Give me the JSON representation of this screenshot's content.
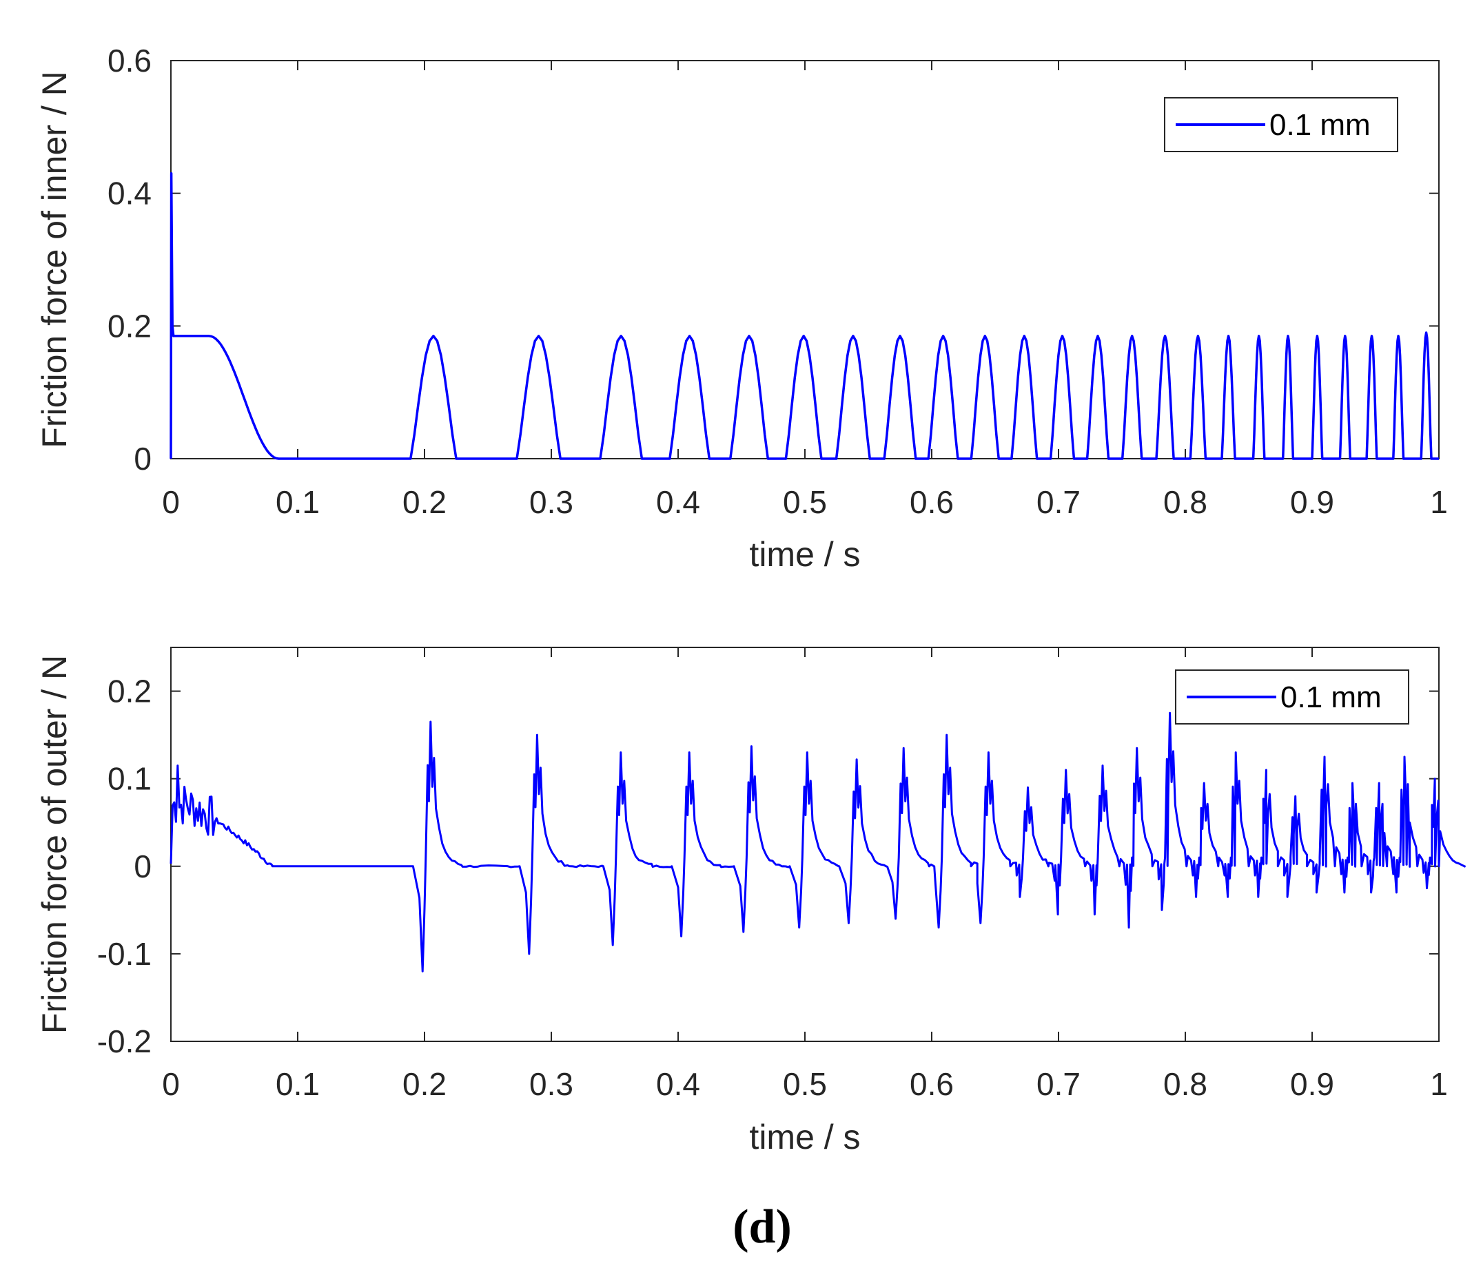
{
  "chart_data": [
    {
      "type": "line",
      "xlabel": "time / s",
      "ylabel": "Friction force of inner / N",
      "xlim": [
        0,
        1
      ],
      "ylim": [
        0,
        0.6
      ],
      "xticks": [
        0,
        0.1,
        0.2,
        0.3,
        0.4,
        0.5,
        0.6,
        0.7,
        0.8,
        0.9,
        1
      ],
      "xtick_labels": [
        "0",
        "0.1",
        "0.2",
        "0.3",
        "0.4",
        "0.5",
        "0.6",
        "0.7",
        "0.8",
        "0.9",
        "1"
      ],
      "yticks": [
        0,
        0.2,
        0.4,
        0.6
      ],
      "ytick_labels": [
        "0",
        "0.2",
        "0.4",
        "0.6"
      ],
      "legend": "top-right",
      "color": "#0000ff",
      "series": [
        {
          "name": "0.1 mm",
          "initial_spike": 0.43,
          "plateau": {
            "start": 0,
            "end": 0.085,
            "value": 0.185
          },
          "pulses": [
            {
              "t": 0.207,
              "peak": 0.185
            },
            {
              "t": 0.29,
              "peak": 0.185
            },
            {
              "t": 0.355,
              "peak": 0.185
            },
            {
              "t": 0.409,
              "peak": 0.185
            },
            {
              "t": 0.456,
              "peak": 0.185
            },
            {
              "t": 0.499,
              "peak": 0.185
            },
            {
              "t": 0.538,
              "peak": 0.185
            },
            {
              "t": 0.575,
              "peak": 0.185
            },
            {
              "t": 0.609,
              "peak": 0.185
            },
            {
              "t": 0.642,
              "peak": 0.185
            },
            {
              "t": 0.673,
              "peak": 0.185
            },
            {
              "t": 0.703,
              "peak": 0.185
            },
            {
              "t": 0.731,
              "peak": 0.185
            },
            {
              "t": 0.758,
              "peak": 0.185
            },
            {
              "t": 0.784,
              "peak": 0.185
            },
            {
              "t": 0.81,
              "peak": 0.185
            },
            {
              "t": 0.834,
              "peak": 0.185
            },
            {
              "t": 0.858,
              "peak": 0.185
            },
            {
              "t": 0.881,
              "peak": 0.185
            },
            {
              "t": 0.904,
              "peak": 0.185
            },
            {
              "t": 0.926,
              "peak": 0.185
            },
            {
              "t": 0.947,
              "peak": 0.185
            },
            {
              "t": 0.968,
              "peak": 0.185
            },
            {
              "t": 0.99,
              "peak": 0.19
            }
          ]
        }
      ]
    },
    {
      "type": "line",
      "xlabel": "time / s",
      "ylabel": "Friction force of outer / N",
      "xlim": [
        0,
        1
      ],
      "ylim": [
        -0.2,
        0.25
      ],
      "xticks": [
        0,
        0.1,
        0.2,
        0.3,
        0.4,
        0.5,
        0.6,
        0.7,
        0.8,
        0.9,
        1
      ],
      "xtick_labels": [
        "0",
        "0.1",
        "0.2",
        "0.3",
        "0.4",
        "0.5",
        "0.6",
        "0.7",
        "0.8",
        "0.9",
        "1"
      ],
      "yticks": [
        -0.2,
        -0.1,
        0,
        0.1,
        0.2
      ],
      "ytick_labels": [
        "-0.2",
        "-0.1",
        "0",
        "0.1",
        "0.2"
      ],
      "legend": "top-right",
      "color": "#0000ff",
      "series": [
        {
          "name": "0.1 mm",
          "initial_hump": {
            "start": 0,
            "end": 0.08,
            "peak": 0.115
          },
          "events": [
            {
              "t": 0.2,
              "min": -0.12,
              "max": 0.165
            },
            {
              "t": 0.284,
              "min": -0.1,
              "max": 0.15
            },
            {
              "t": 0.35,
              "min": -0.09,
              "max": 0.13
            },
            {
              "t": 0.404,
              "min": -0.08,
              "max": 0.13
            },
            {
              "t": 0.453,
              "min": -0.075,
              "max": 0.137
            },
            {
              "t": 0.497,
              "min": -0.07,
              "max": 0.13
            },
            {
              "t": 0.536,
              "min": -0.065,
              "max": 0.122
            },
            {
              "t": 0.573,
              "min": -0.06,
              "max": 0.135
            },
            {
              "t": 0.607,
              "min": -0.07,
              "max": 0.15
            },
            {
              "t": 0.64,
              "min": -0.065,
              "max": 0.13
            },
            {
              "t": 0.671,
              "min": -0.035,
              "max": 0.09
            },
            {
              "t": 0.701,
              "min": -0.055,
              "max": 0.11
            },
            {
              "t": 0.73,
              "min": -0.055,
              "max": 0.115
            },
            {
              "t": 0.757,
              "min": -0.07,
              "max": 0.135
            },
            {
              "t": 0.783,
              "min": -0.05,
              "max": 0.175
            },
            {
              "t": 0.81,
              "min": -0.035,
              "max": 0.095
            },
            {
              "t": 0.835,
              "min": -0.035,
              "max": 0.13
            },
            {
              "t": 0.859,
              "min": -0.035,
              "max": 0.11
            },
            {
              "t": 0.882,
              "min": -0.035,
              "max": 0.08
            },
            {
              "t": 0.905,
              "min": -0.03,
              "max": 0.125
            },
            {
              "t": 0.927,
              "min": -0.03,
              "max": 0.095
            },
            {
              "t": 0.948,
              "min": -0.03,
              "max": 0.095
            },
            {
              "t": 0.968,
              "min": -0.03,
              "max": 0.125
            },
            {
              "t": 0.992,
              "min": -0.025,
              "max": 0.1
            }
          ]
        }
      ]
    }
  ],
  "caption": "(d)"
}
